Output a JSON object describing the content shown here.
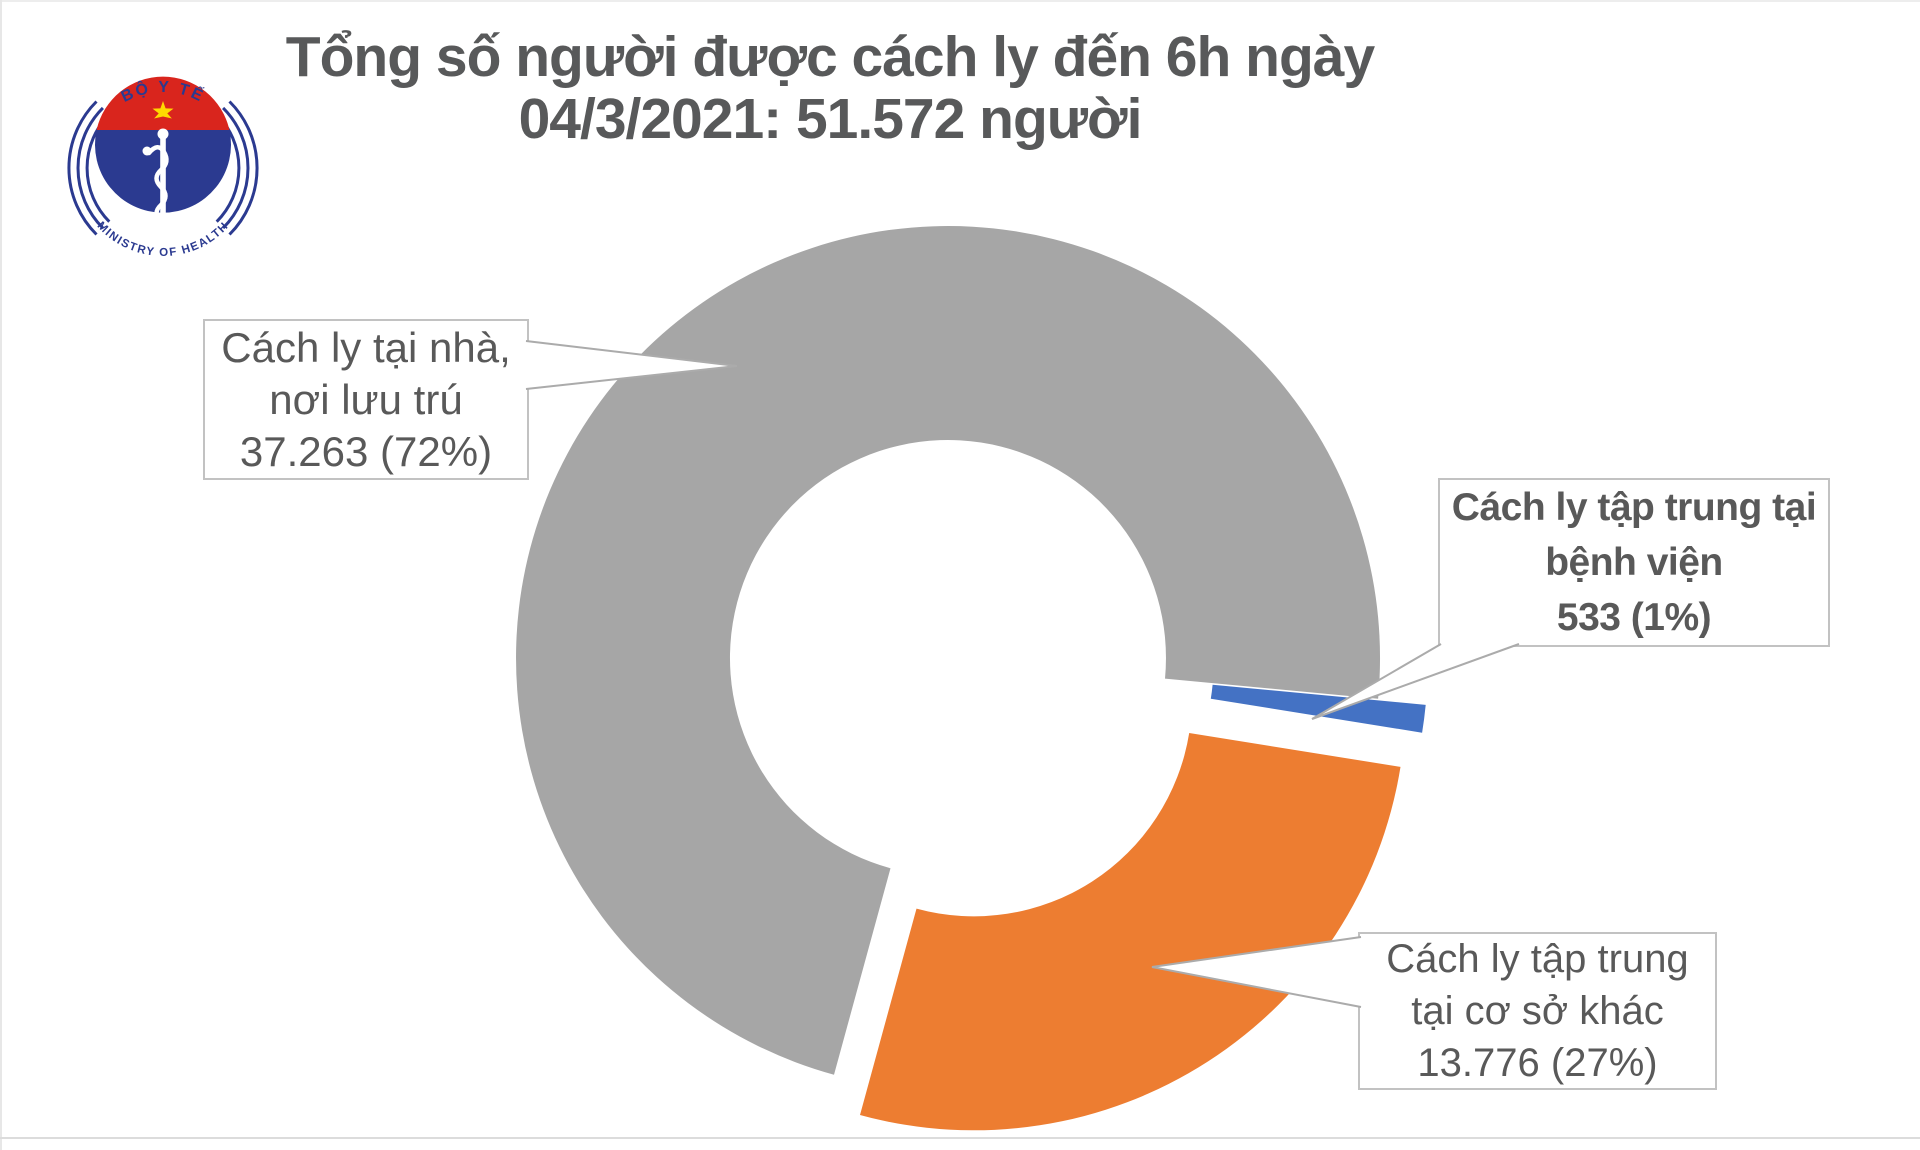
{
  "page": {
    "background": "#ffffff"
  },
  "logo": {
    "name": "ministry-of-health-vietnam-logo",
    "top_text": "BỘ Y TẾ",
    "bottom_text": "MINISTRY OF HEALTH",
    "colors": {
      "blue": "#2b3a90",
      "red": "#d9251d",
      "star": "#ffd900",
      "staff": "#ffffff"
    }
  },
  "title": {
    "line1": "Tổng số người được cách ly đến 6h ngày",
    "line2": "04/3/2021: 51.572 người"
  },
  "chart_data": {
    "type": "pie",
    "subtype": "doughnut-exploded-with-callouts",
    "title": "Tổng số người được cách ly đến 6h ngày 04/3/2021: 51.572 người",
    "total": 51572,
    "total_label": "51.572 người",
    "slices": [
      {
        "name": "cach-ly-tai-nha-noi-luu-tru",
        "value": 37263,
        "percent": "72%",
        "color": "#a6a6a6",
        "callout_lines": [
          "Cách ly tại nhà,",
          "nơi lưu trú",
          "37.263 (72%)"
        ]
      },
      {
        "name": "cach-ly-tap-trung-tai-benh-vien",
        "value": 533,
        "percent": "1%",
        "color": "#4472c4",
        "callout_lines": [
          "Cách ly tập trung tại",
          "bệnh viện",
          "533 (1%)"
        ]
      },
      {
        "name": "cach-ly-tap-trung-tai-co-so-khac",
        "value": 13776,
        "percent": "27%",
        "color": "#ed7d31",
        "callout_lines": [
          "Cách ly tập trung",
          "tại cơ sở khác",
          "13.776 (27%)"
        ]
      }
    ],
    "layout": {
      "start_angle_deg": 195.3,
      "direction": "clockwise",
      "hole_ratio": 0.505,
      "exploded": [
        false,
        true,
        true
      ],
      "legend": "callout-labels"
    }
  }
}
